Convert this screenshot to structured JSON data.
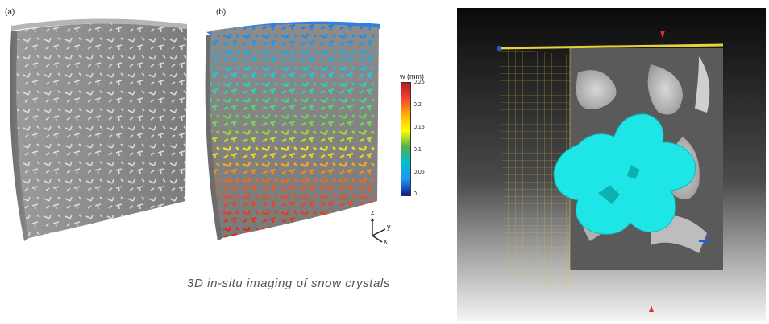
{
  "panels": {
    "a_label": "(a)",
    "b_label": "(b)"
  },
  "colorbar": {
    "title": "w (mm)",
    "ticks": [
      "0.25",
      "0.2",
      "0.15",
      "0.1",
      "0.05",
      "0"
    ],
    "gradient": [
      "#b71c1c",
      "#f44336",
      "#ffb300",
      "#ffff00",
      "#4caf50",
      "#00bcd4",
      "#2196f3",
      "#0d1b8c"
    ]
  },
  "axes_triad": {
    "z": "z",
    "y": "y",
    "x": "x"
  },
  "caption": "3D in-situ imaging of snow crystals",
  "colors": {
    "sample_gray": "#8a8a8a",
    "crystal_cyan": "#1fe6e6",
    "grid_yellow": "#d8c23a"
  }
}
